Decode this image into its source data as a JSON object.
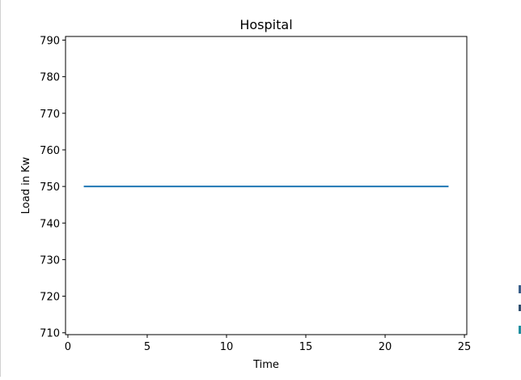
{
  "chart_data": {
    "type": "line",
    "title": "Hospital",
    "xlabel": "Time",
    "ylabel": "Load in Kw",
    "x": [
      1,
      2,
      3,
      4,
      5,
      6,
      7,
      8,
      9,
      10,
      11,
      12,
      13,
      14,
      15,
      16,
      17,
      18,
      19,
      20,
      21,
      22,
      23,
      24
    ],
    "series": [
      {
        "values": [
          750,
          750,
          750,
          750,
          750,
          750,
          750,
          750,
          750,
          750,
          750,
          750,
          750,
          750,
          750,
          750,
          750,
          750,
          750,
          750,
          750,
          750,
          750,
          750
        ],
        "color": "#1f77b4"
      }
    ],
    "xlim": [
      -0.15,
      25.15
    ],
    "ylim": [
      709.5,
      791.0
    ],
    "xticks": [
      0,
      5,
      10,
      15,
      20,
      25
    ],
    "yticks": [
      710,
      720,
      730,
      740,
      750,
      760,
      770,
      780,
      790
    ],
    "grid": false,
    "legend": "none"
  }
}
